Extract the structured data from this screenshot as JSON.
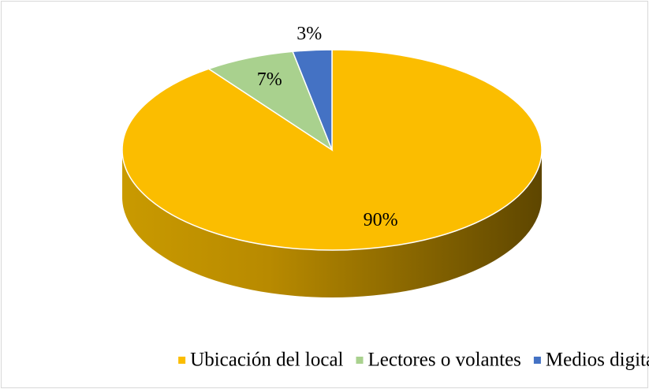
{
  "chart_data": {
    "type": "pie",
    "categories": [
      "Ubicación del local",
      "Lectores o volantes",
      "Medios digitales"
    ],
    "values": [
      90,
      7,
      3
    ],
    "value_labels": [
      "90%",
      "7%",
      "3%"
    ],
    "colors": [
      "#fbbd00",
      "#a9d18e",
      "#4472c4"
    ],
    "legend": "bottom"
  }
}
